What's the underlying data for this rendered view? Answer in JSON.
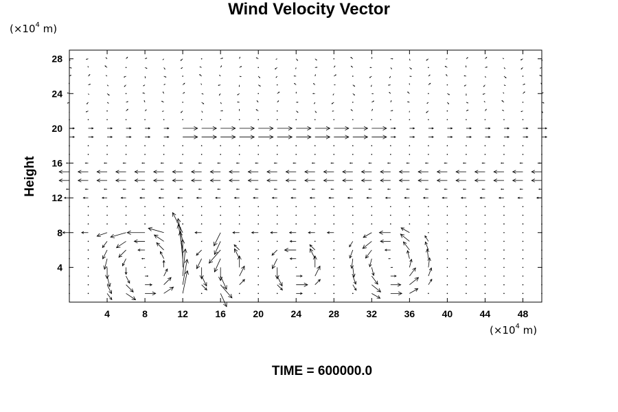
{
  "chart_data": {
    "type": "vector_field",
    "title": "Wind Velocity Vector",
    "ylabel": "Height",
    "y_unit": {
      "prefix": "(×10",
      "exp": "4",
      "suffix": " m)"
    },
    "x_unit": {
      "prefix": "(×10",
      "exp": "4",
      "suffix": " m)"
    },
    "xlim": [
      0,
      50
    ],
    "ylim": [
      0,
      29
    ],
    "x_ticks": [
      4,
      8,
      12,
      16,
      20,
      24,
      28,
      32,
      36,
      40,
      44,
      48
    ],
    "y_ticks": [
      4,
      8,
      12,
      16,
      20,
      24,
      28
    ],
    "grid": false,
    "footer": "TIME = 600000.0"
  }
}
